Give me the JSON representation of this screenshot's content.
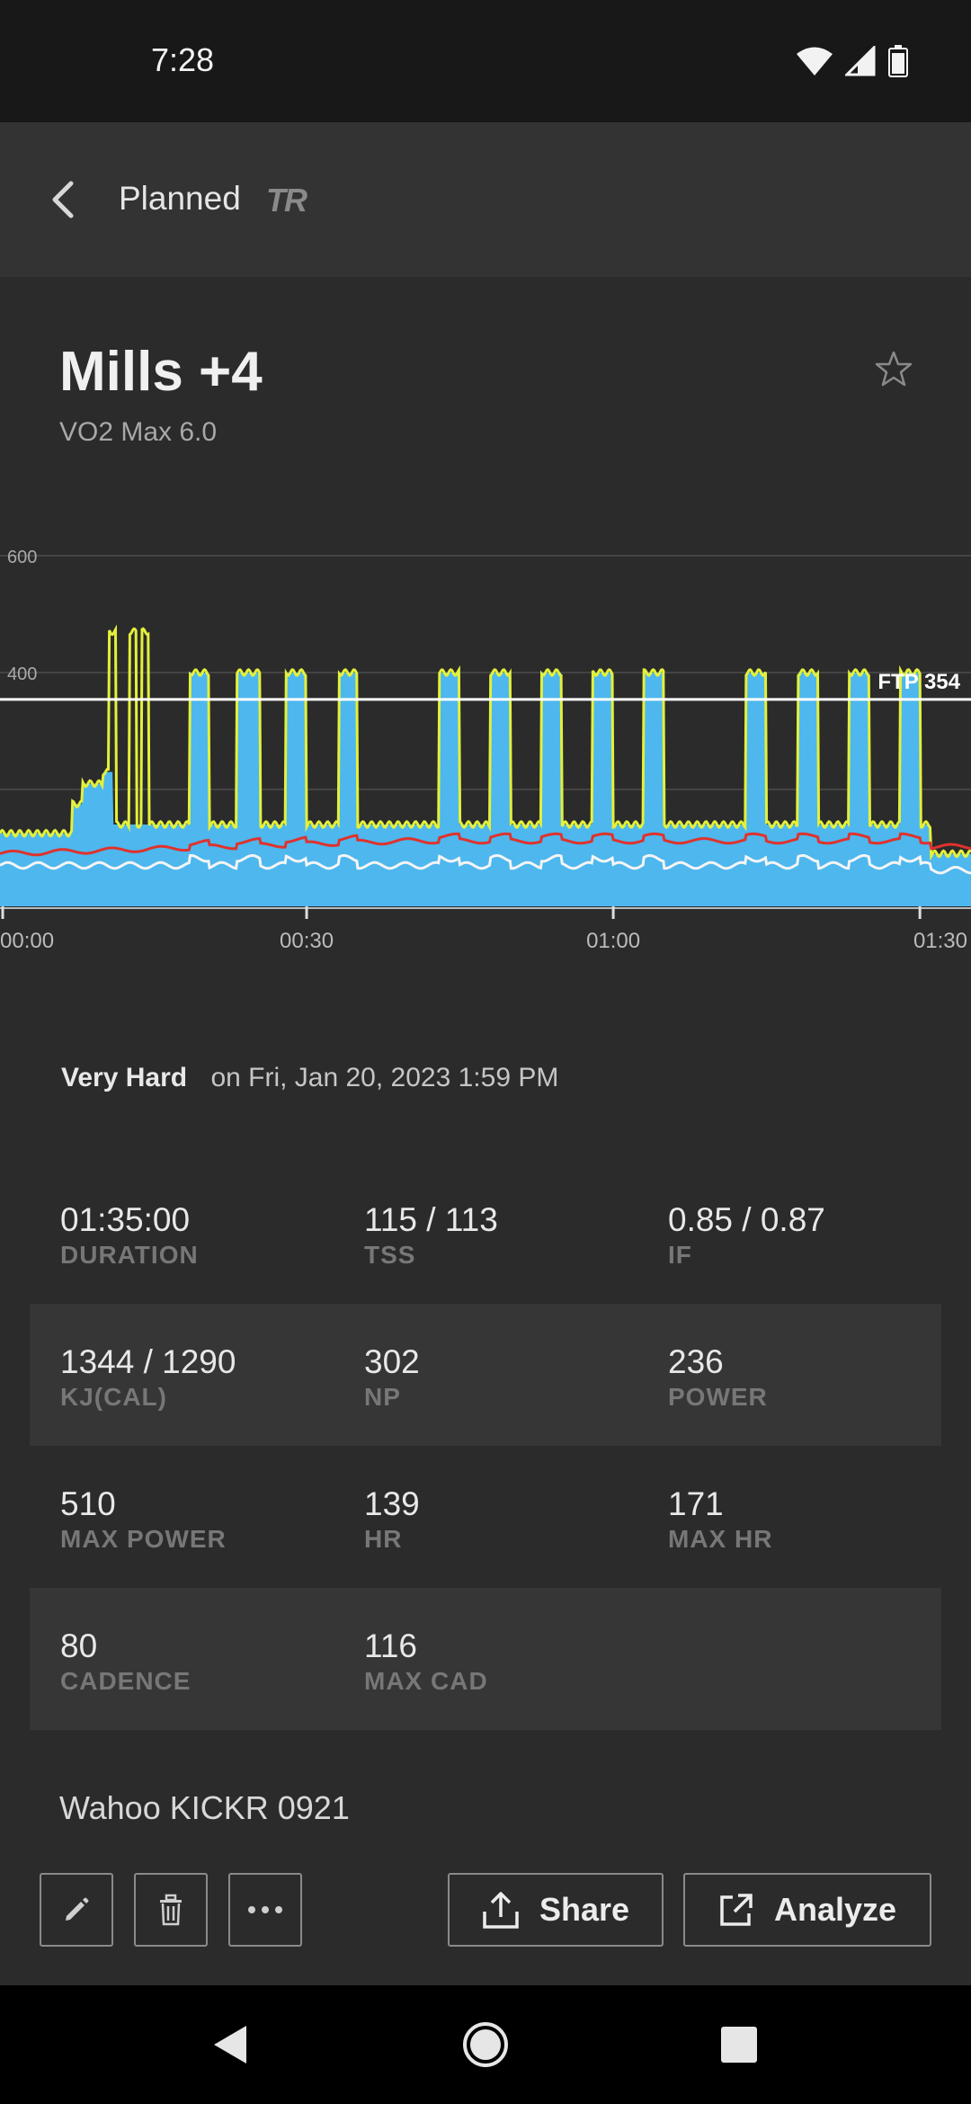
{
  "status_bar": {
    "time": "7:28",
    "icons": [
      "wifi-icon",
      "cell-signal-icon",
      "battery-icon"
    ]
  },
  "app_bar": {
    "back_icon": "chevron-left-icon",
    "title": "Planned",
    "logo_text": "TR"
  },
  "workout": {
    "title": "Mills +4",
    "subtitle": "VO2 Max 6.0",
    "favorite_icon": "star-outline-icon"
  },
  "chart_data": {
    "type": "area",
    "y_tick_labels": [
      "600",
      "400"
    ],
    "ylim": [
      0,
      600
    ],
    "x_tick_labels": [
      "00:00",
      "00:30",
      "01:00",
      "01:30"
    ],
    "xlim_minutes": [
      0,
      95
    ],
    "ftp_label": "FTP 354",
    "ftp_value": 354,
    "grid": true,
    "series": [
      {
        "color": "#4db7ee",
        "fill": true,
        "values": "power target area"
      },
      {
        "color": "#e4f03a",
        "values": "power"
      },
      {
        "color": "#e0322c",
        "values": "heart rate"
      },
      {
        "color": "#f4f4f4",
        "values": "cadence"
      }
    ],
    "intervals_minutes": [
      [
        18.5,
        20.5
      ],
      [
        23.2,
        25.5
      ],
      [
        28.0,
        30.0
      ],
      [
        33.2,
        35.0
      ],
      [
        43.0,
        45.0
      ],
      [
        48.0,
        50.0
      ],
      [
        53.0,
        55.0
      ],
      [
        58.0,
        60.0
      ],
      [
        63.0,
        65.0
      ],
      [
        73.0,
        75.0
      ],
      [
        78.0,
        80.0
      ],
      [
        83.0,
        85.0
      ],
      [
        88.0,
        90.0
      ]
    ],
    "warmup_spikes_minutes": [
      11.0,
      13.0,
      14.2
    ]
  },
  "difficulty": "Very Hard",
  "date_text": "on Fri, Jan 20, 2023 1:59 PM",
  "stats": [
    [
      {
        "value": "01:35:00",
        "label": "DURATION"
      },
      {
        "value": "115 / 113",
        "label": "TSS"
      },
      {
        "value": "0.85 / 0.87",
        "label": "IF"
      }
    ],
    [
      {
        "value": "1344 / 1290",
        "label": "KJ(CAL)"
      },
      {
        "value": "302",
        "label": "NP"
      },
      {
        "value": "236",
        "label": "POWER"
      }
    ],
    [
      {
        "value": "510",
        "label": "MAX POWER"
      },
      {
        "value": "139",
        "label": "HR"
      },
      {
        "value": "171",
        "label": "MAX HR"
      }
    ],
    [
      {
        "value": "80",
        "label": "CADENCE"
      },
      {
        "value": "116",
        "label": "MAX CAD"
      },
      {
        "value": "",
        "label": ""
      }
    ]
  ],
  "device_name": "Wahoo KICKR 0921",
  "actions": {
    "edit_icon": "pencil-icon",
    "delete_icon": "trash-icon",
    "more_icon": "more-horizontal-icon",
    "share_label": "Share",
    "analyze_label": "Analyze"
  },
  "nav": {
    "back": "nav-back-icon",
    "home": "nav-home-icon",
    "recents": "nav-recents-icon"
  }
}
